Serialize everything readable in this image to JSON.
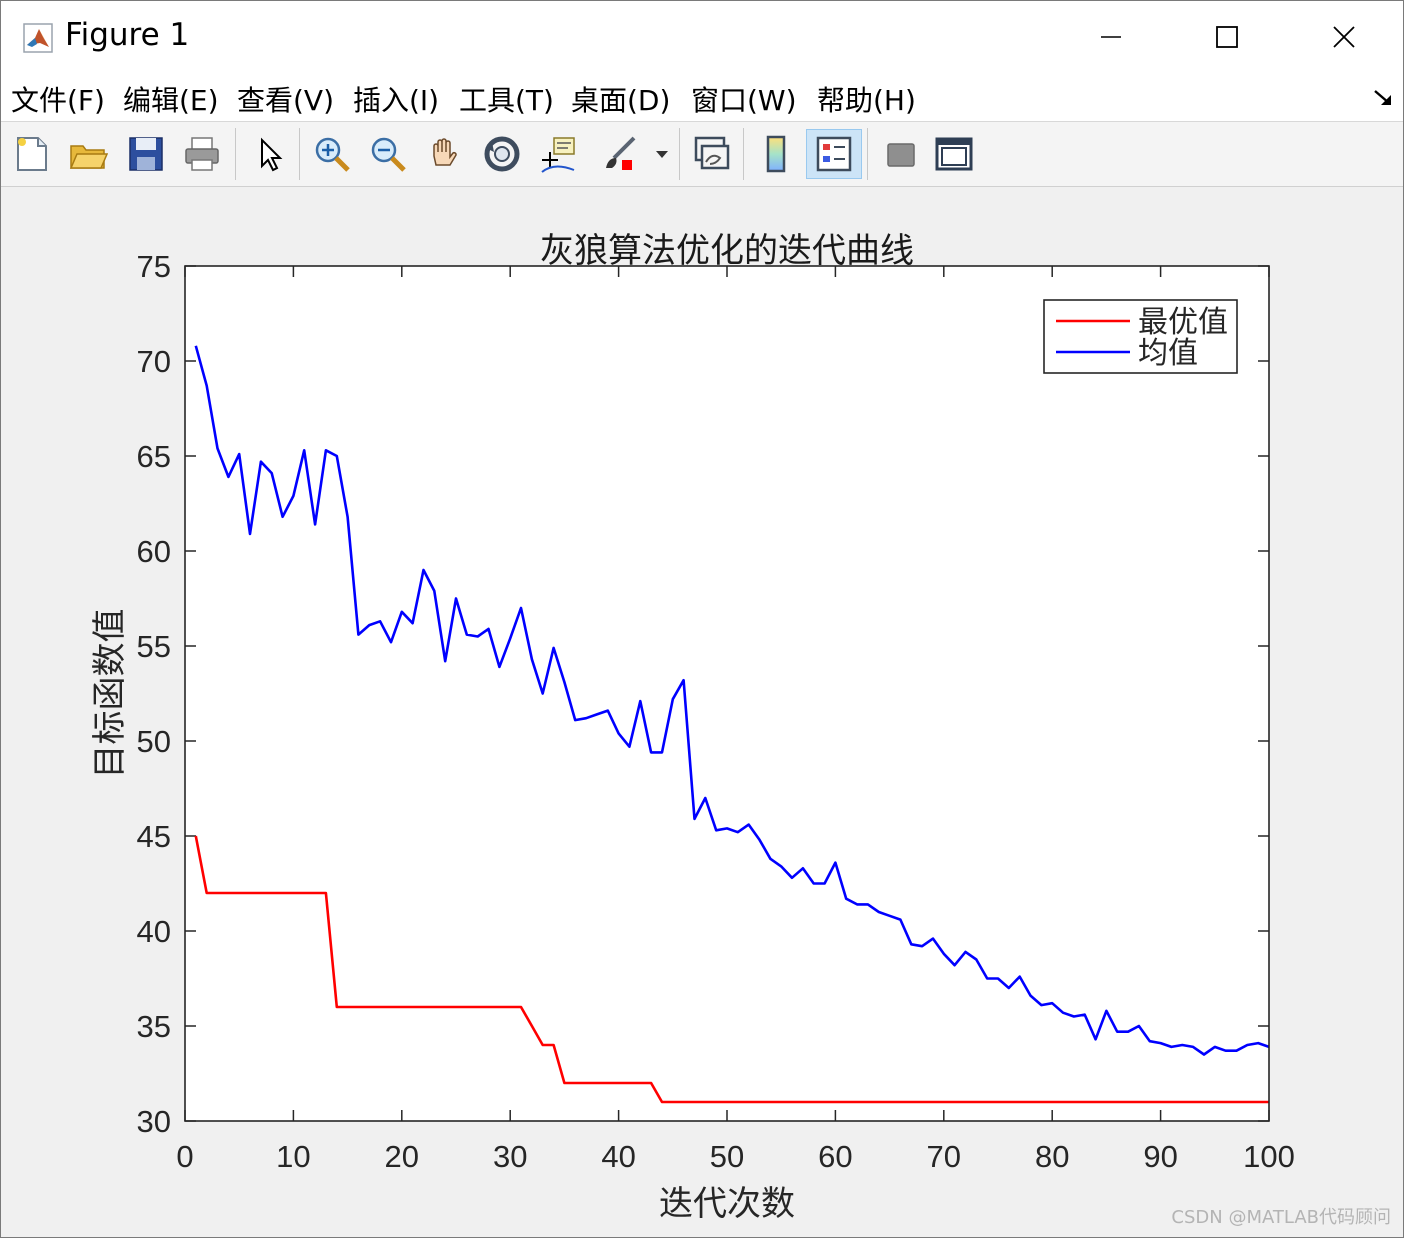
{
  "window": {
    "title": "Figure 1",
    "controls": {
      "minimize": "minimize",
      "maximize": "maximize",
      "close": "close"
    }
  },
  "menu": {
    "items": [
      "文件(F)",
      "编辑(E)",
      "查看(V)",
      "插入(I)",
      "工具(T)",
      "桌面(D)",
      "窗口(W)",
      "帮助(H)"
    ]
  },
  "toolbar": {
    "tools": [
      "new-figure-icon",
      "open-file-icon",
      "save-icon",
      "print-icon",
      "pointer-icon",
      "zoom-in-icon",
      "zoom-out-icon",
      "pan-hand-icon",
      "rotate-3d-icon",
      "data-cursor-icon",
      "brush-icon",
      "link-plot-icon",
      "colorbar-icon",
      "legend-icon",
      "hide-plot-tools-icon",
      "show-plot-tools-icon"
    ]
  },
  "watermark": "CSDN @MATLAB代码顾问",
  "chart_data": {
    "type": "line",
    "title": "灰狼算法优化的迭代曲线",
    "xlabel": "迭代次数",
    "ylabel": "目标函数值",
    "xlim": [
      0,
      100
    ],
    "ylim": [
      30,
      75
    ],
    "xticks": [
      0,
      10,
      20,
      30,
      40,
      50,
      60,
      70,
      80,
      90,
      100
    ],
    "yticks": [
      30,
      35,
      40,
      45,
      50,
      55,
      60,
      65,
      70,
      75
    ],
    "legend_position": "top-right",
    "grid": false,
    "series": [
      {
        "name": "最优值",
        "color": "#ff0000",
        "x": [
          1,
          2,
          3,
          4,
          5,
          6,
          7,
          8,
          9,
          10,
          11,
          12,
          13,
          14,
          15,
          16,
          17,
          18,
          19,
          20,
          21,
          22,
          23,
          24,
          25,
          26,
          27,
          28,
          29,
          30,
          31,
          32,
          33,
          34,
          35,
          36,
          37,
          38,
          39,
          40,
          41,
          42,
          43,
          44,
          45,
          46,
          47,
          48,
          49,
          50,
          51,
          52,
          53,
          54,
          55,
          56,
          57,
          58,
          59,
          60,
          61,
          62,
          63,
          64,
          65,
          66,
          67,
          68,
          69,
          70,
          71,
          72,
          73,
          74,
          75,
          76,
          77,
          78,
          79,
          80,
          81,
          82,
          83,
          84,
          85,
          86,
          87,
          88,
          89,
          90,
          91,
          92,
          93,
          94,
          95,
          96,
          97,
          98,
          99,
          100
        ],
        "y": [
          45,
          42,
          42,
          42,
          42,
          42,
          42,
          42,
          42,
          42,
          42,
          42,
          42,
          36,
          36,
          36,
          36,
          36,
          36,
          36,
          36,
          36,
          36,
          36,
          36,
          36,
          36,
          36,
          36,
          36,
          36,
          35,
          34,
          34,
          32,
          32,
          32,
          32,
          32,
          32,
          32,
          32,
          32,
          31,
          31,
          31,
          31,
          31,
          31,
          31,
          31,
          31,
          31,
          31,
          31,
          31,
          31,
          31,
          31,
          31,
          31,
          31,
          31,
          31,
          31,
          31,
          31,
          31,
          31,
          31,
          31,
          31,
          31,
          31,
          31,
          31,
          31,
          31,
          31,
          31,
          31,
          31,
          31,
          31,
          31,
          31,
          31,
          31,
          31,
          31,
          31,
          31,
          31,
          31,
          31,
          31,
          31,
          31,
          31,
          31
        ]
      },
      {
        "name": "均值",
        "color": "#0000ff",
        "x": [
          1,
          2,
          3,
          4,
          5,
          6,
          7,
          8,
          9,
          10,
          11,
          12,
          13,
          14,
          15,
          16,
          17,
          18,
          19,
          20,
          21,
          22,
          23,
          24,
          25,
          26,
          27,
          28,
          29,
          30,
          31,
          32,
          33,
          34,
          35,
          36,
          37,
          38,
          39,
          40,
          41,
          42,
          43,
          44,
          45,
          46,
          47,
          48,
          49,
          50,
          51,
          52,
          53,
          54,
          55,
          56,
          57,
          58,
          59,
          60,
          61,
          62,
          63,
          64,
          65,
          66,
          67,
          68,
          69,
          70,
          71,
          72,
          73,
          74,
          75,
          76,
          77,
          78,
          79,
          80,
          81,
          82,
          83,
          84,
          85,
          86,
          87,
          88,
          89,
          90,
          91,
          92,
          93,
          94,
          95,
          96,
          97,
          98,
          99,
          100
        ],
        "y": [
          70.8,
          68.7,
          65.4,
          63.9,
          65.1,
          60.9,
          64.7,
          64.1,
          61.8,
          62.9,
          65.3,
          61.4,
          65.3,
          65.0,
          61.8,
          55.6,
          56.1,
          56.3,
          55.2,
          56.8,
          56.2,
          59.0,
          57.9,
          54.2,
          57.5,
          55.6,
          55.5,
          55.9,
          53.9,
          55.4,
          57.0,
          54.3,
          52.5,
          54.9,
          53.1,
          51.1,
          51.2,
          51.4,
          51.6,
          50.4,
          49.7,
          52.1,
          49.4,
          49.4,
          52.2,
          53.2,
          45.9,
          47.0,
          45.3,
          45.4,
          45.2,
          45.6,
          44.8,
          43.8,
          43.4,
          42.8,
          43.3,
          42.5,
          42.5,
          43.6,
          41.7,
          41.4,
          41.4,
          41.0,
          40.8,
          40.6,
          39.3,
          39.2,
          39.6,
          38.8,
          38.2,
          38.9,
          38.5,
          37.5,
          37.5,
          37.0,
          37.6,
          36.6,
          36.1,
          36.2,
          35.7,
          35.5,
          35.6,
          34.3,
          35.8,
          34.7,
          34.7,
          35.0,
          34.2,
          34.1,
          33.9,
          34.0,
          33.9,
          33.5,
          33.9,
          33.7,
          33.7,
          34.0,
          34.1,
          33.9
        ]
      }
    ]
  }
}
